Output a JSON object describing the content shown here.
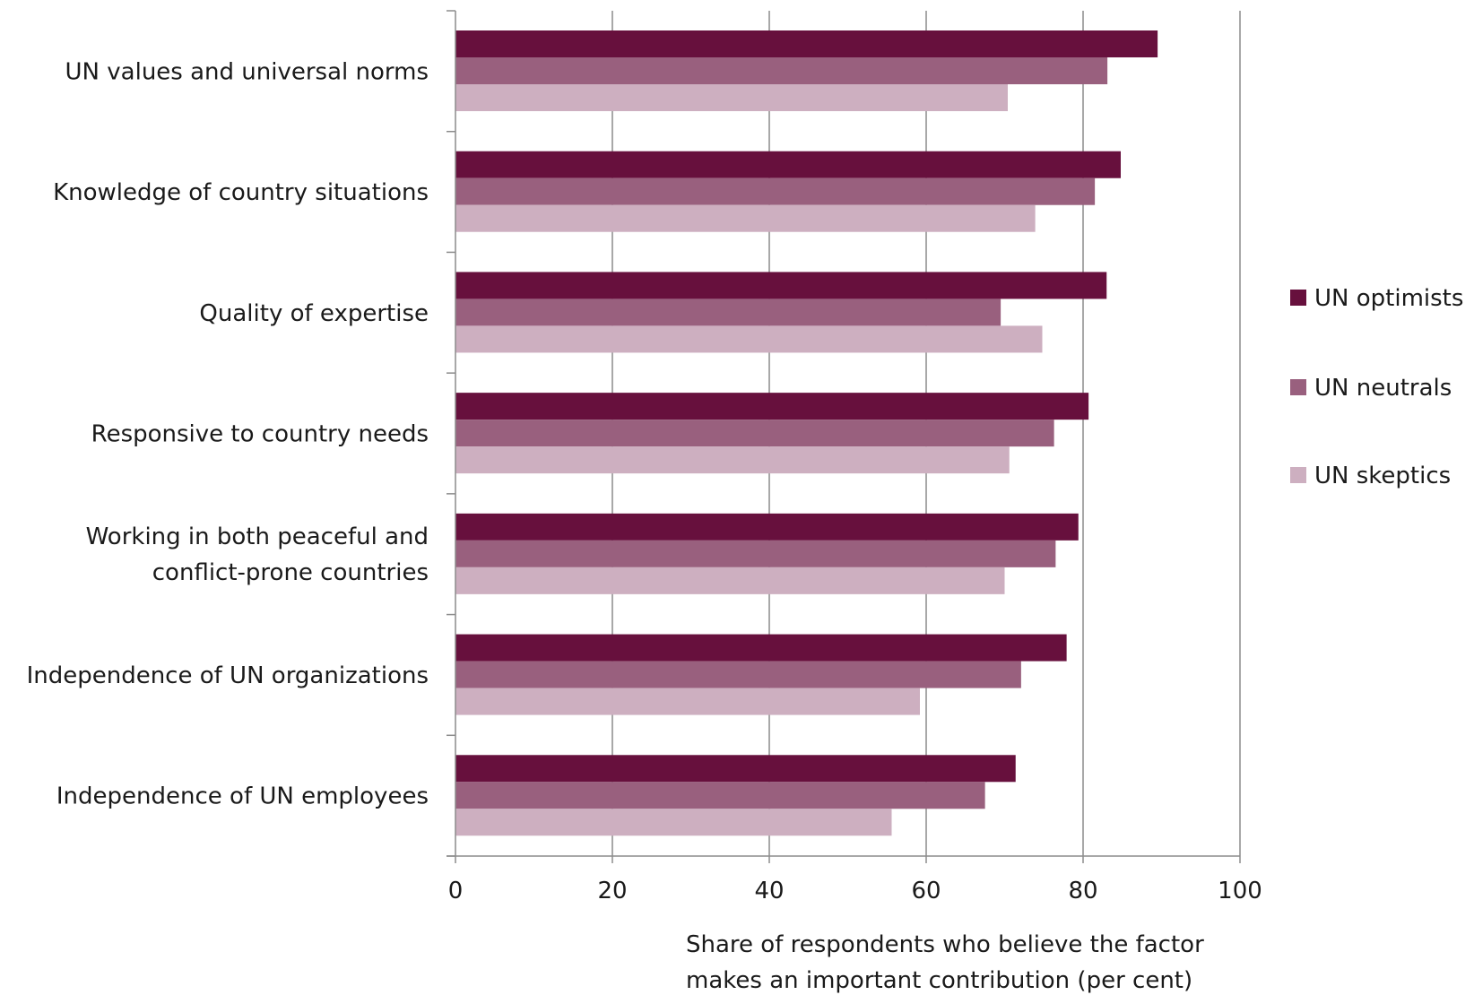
{
  "chart_data": {
    "type": "bar",
    "orientation": "horizontal",
    "categories": [
      [
        "UN values and universal norms"
      ],
      [
        "Knowledge of country situations"
      ],
      [
        "Quality of expertise"
      ],
      [
        "Responsive to country needs"
      ],
      [
        "Working in both peaceful and",
        "conflict-prone countries"
      ],
      [
        "Independence of UN organizations"
      ],
      [
        "Independence of UN employees"
      ]
    ],
    "series": [
      {
        "name": "UN optimists",
        "color": "#67103d",
        "values": [
          89.5,
          84.8,
          83.0,
          80.7,
          79.4,
          77.9,
          71.4
        ]
      },
      {
        "name": "UN neutrals",
        "color": "#99607e",
        "values": [
          83.1,
          81.5,
          69.5,
          76.3,
          76.5,
          72.1,
          67.5
        ]
      },
      {
        "name": "UN skeptics",
        "color": "#cdafc0",
        "values": [
          70.4,
          73.9,
          74.8,
          70.6,
          70.0,
          59.2,
          55.6
        ]
      }
    ],
    "xlim": [
      0,
      100
    ],
    "xticks": [
      0,
      20,
      40,
      60,
      80,
      100
    ],
    "xlabel": [
      "Share of respondents who believe the factor",
      "makes an important contribution (per cent)"
    ],
    "ylabel": "",
    "title": "",
    "grid": "vertical",
    "legend_position": "right"
  }
}
